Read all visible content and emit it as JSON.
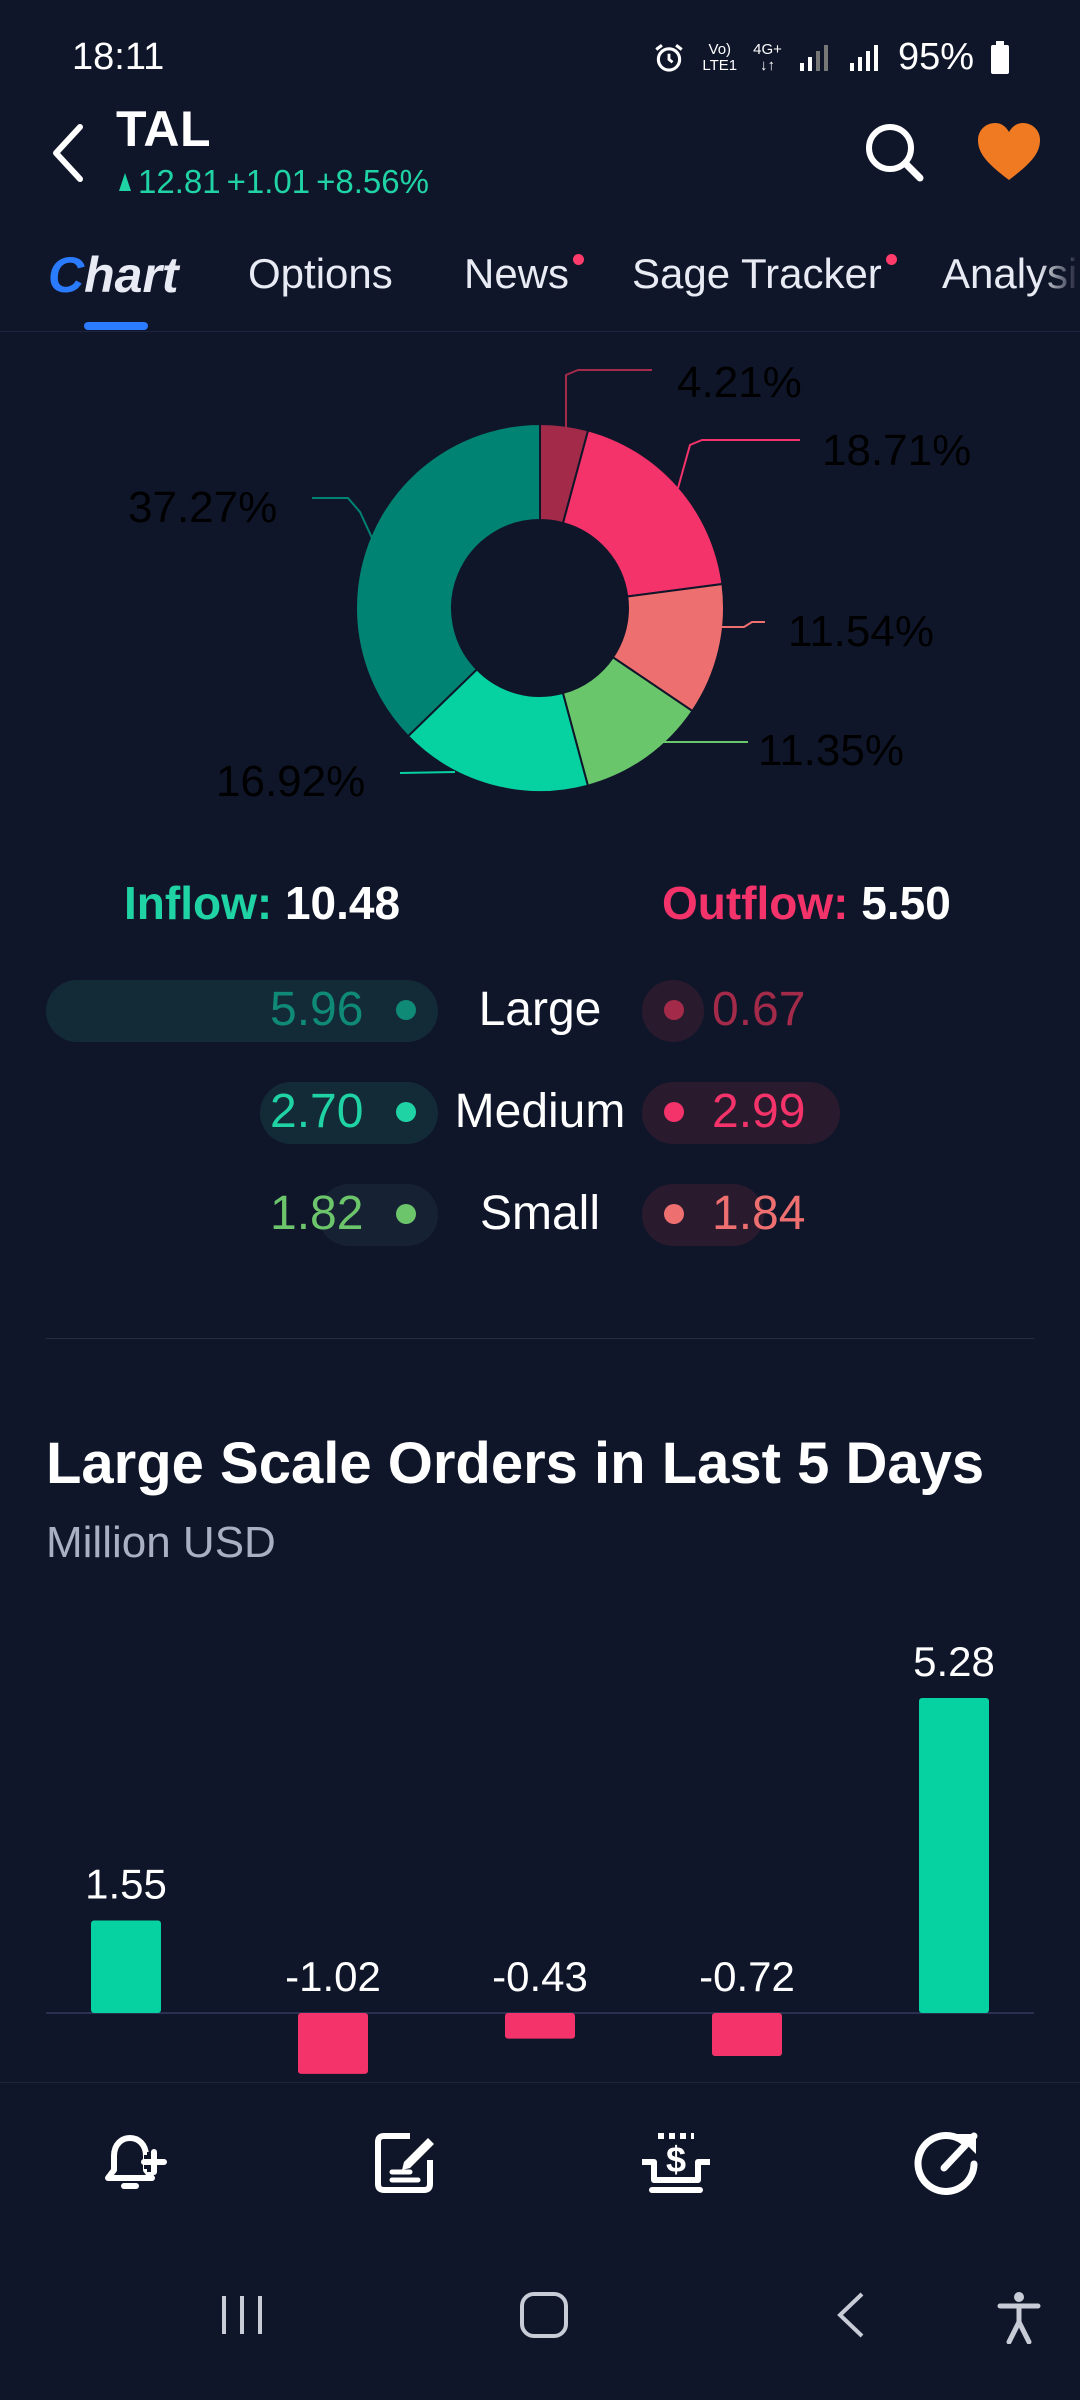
{
  "status": {
    "time": "18:11",
    "network_top": "Vo)",
    "network_bottom": "LTE1",
    "data_type": "4G+",
    "battery": "95%"
  },
  "header": {
    "ticker": "TAL",
    "price": "12.81",
    "change": "+1.01",
    "change_pct": "+8.56%"
  },
  "tabs": [
    {
      "label_first": "C",
      "label_rest": "hart",
      "active": true
    },
    {
      "label": "Options"
    },
    {
      "label": "News",
      "badge": true
    },
    {
      "label": "Sage Tracker",
      "badge": true
    },
    {
      "label": "Analysis"
    }
  ],
  "distribution": {
    "slices": [
      {
        "label": "4.21%",
        "value": 4.21,
        "color": "#a32a49"
      },
      {
        "label": "18.71%",
        "value": 18.71,
        "color": "#f4336a"
      },
      {
        "label": "11.54%",
        "value": 11.54,
        "color": "#ee6f6f"
      },
      {
        "label": "11.35%",
        "value": 11.35,
        "color": "#6ac66a"
      },
      {
        "label": "16.92%",
        "value": 16.92,
        "color": "#06d1a0"
      },
      {
        "label": "37.27%",
        "value": 37.27,
        "color": "#008372"
      }
    ]
  },
  "flow": {
    "inflow_label": "Inflow:",
    "inflow_value": "10.48",
    "outflow_label": "Outflow:",
    "outflow_value": "5.50",
    "rows": [
      {
        "label": "Large",
        "in": "5.96",
        "out": "0.67"
      },
      {
        "label": "Medium",
        "in": "2.70",
        "out": "2.99"
      },
      {
        "label": "Small",
        "in": "1.82",
        "out": "1.84"
      }
    ],
    "colors": {
      "inflow": "#1fd3a5",
      "outflow": "#f4336a",
      "large_in": "#0f8a77",
      "medium_in": "#1fd3a5",
      "small_in": "#6cc56b",
      "large_out": "#a32a49",
      "medium_out": "#f4336a",
      "small_out": "#ee6f6f"
    }
  },
  "section": {
    "title": "Large Scale Orders in Last 5 Days",
    "subtitle": "Million USD"
  },
  "chart_data": {
    "type": "bar",
    "title": "Large Scale Orders in Last 5 Days",
    "ylabel": "Million USD",
    "values": [
      1.55,
      -1.02,
      -0.43,
      -0.72,
      5.28
    ],
    "labels": [
      "1.55",
      "-1.02",
      "-0.43",
      "-0.72",
      "5.28"
    ],
    "colors": {
      "positive": "#06d1a0",
      "negative": "#f4336a"
    }
  },
  "bottom_nav": [
    {
      "icon": "add-alert-icon"
    },
    {
      "icon": "edit-note-icon"
    },
    {
      "icon": "trade-dollar-icon"
    },
    {
      "icon": "share-icon"
    }
  ]
}
